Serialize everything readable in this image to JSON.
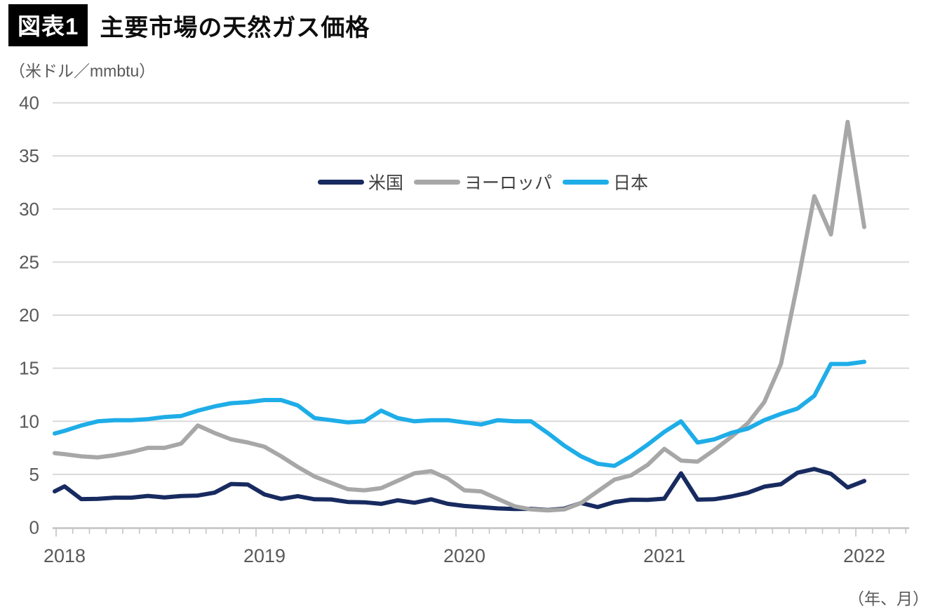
{
  "header": {
    "figure_label": "図表1",
    "title": "主要市場の天然ガス価格"
  },
  "unit_label": "（米ドル／mmbtu）",
  "x_axis_note": "（年、月）",
  "colors": {
    "us": "#182b60",
    "europe": "#a7a7a7",
    "japan": "#1fade8",
    "grid": "#d9d9d9",
    "axis": "#c3c3c3",
    "tick_label": "#595959"
  },
  "chart_data": {
    "type": "line",
    "title": "主要市場の天然ガス価格",
    "ylabel": "米ドル／mmbtu",
    "xlabel": "年、月",
    "ylim": [
      0,
      40
    ],
    "yticks": [
      0,
      5,
      10,
      15,
      20,
      25,
      30,
      35,
      40
    ],
    "grid": "horizontal",
    "legend_position": "top-center-inside",
    "x_year_labels": [
      "2018",
      "2019",
      "2020",
      "2021",
      "2022"
    ],
    "months": [
      "2018-01",
      "2018-02",
      "2018-03",
      "2018-04",
      "2018-05",
      "2018-06",
      "2018-07",
      "2018-08",
      "2018-09",
      "2018-10",
      "2018-11",
      "2018-12",
      "2019-01",
      "2019-02",
      "2019-03",
      "2019-04",
      "2019-05",
      "2019-06",
      "2019-07",
      "2019-08",
      "2019-09",
      "2019-10",
      "2019-11",
      "2019-12",
      "2020-01",
      "2020-02",
      "2020-03",
      "2020-04",
      "2020-05",
      "2020-06",
      "2020-07",
      "2020-08",
      "2020-09",
      "2020-10",
      "2020-11",
      "2020-12",
      "2021-01",
      "2021-02",
      "2021-03",
      "2021-04",
      "2021-05",
      "2021-06",
      "2021-07",
      "2021-08",
      "2021-09",
      "2021-10",
      "2021-11",
      "2021-12",
      "2022-01"
    ],
    "series": [
      {
        "key": "us",
        "name": "米国",
        "color": "#182b60",
        "clipped_lead_in_value": 3.4,
        "values": [
          3.87,
          2.67,
          2.69,
          2.8,
          2.8,
          2.97,
          2.83,
          2.96,
          3.0,
          3.28,
          4.09,
          4.04,
          3.11,
          2.69,
          2.95,
          2.65,
          2.64,
          2.4,
          2.37,
          2.22,
          2.56,
          2.33,
          2.65,
          2.22,
          2.02,
          1.91,
          1.79,
          1.74,
          1.75,
          1.63,
          1.77,
          2.3,
          1.92,
          2.39,
          2.61,
          2.59,
          2.71,
          5.1,
          2.62,
          2.66,
          2.91,
          3.26,
          3.84,
          4.07,
          5.16,
          5.51,
          5.05,
          3.76,
          4.38
        ]
      },
      {
        "key": "europe",
        "name": "ヨーロッパ",
        "color": "#a7a7a7",
        "clipped_lead_in_value": 7.0,
        "values": [
          6.9,
          6.7,
          6.6,
          6.8,
          7.1,
          7.5,
          7.5,
          7.9,
          9.6,
          8.9,
          8.3,
          8.0,
          7.6,
          6.7,
          5.7,
          4.8,
          4.2,
          3.6,
          3.5,
          3.7,
          4.4,
          5.1,
          5.3,
          4.6,
          3.5,
          3.4,
          2.7,
          2.0,
          1.7,
          1.6,
          1.7,
          2.3,
          3.4,
          4.5,
          4.9,
          5.9,
          7.4,
          6.3,
          6.2,
          7.3,
          8.5,
          9.8,
          11.8,
          15.4,
          23.0,
          31.2,
          27.6,
          38.2,
          28.3
        ]
      },
      {
        "key": "japan",
        "name": "日本",
        "color": "#1fade8",
        "clipped_lead_in_value": 8.85,
        "values": [
          9.1,
          9.6,
          10.0,
          10.1,
          10.1,
          10.2,
          10.4,
          10.5,
          11.0,
          11.4,
          11.7,
          11.8,
          12.0,
          12.0,
          11.5,
          10.3,
          10.1,
          9.9,
          10.0,
          11.0,
          10.3,
          10.0,
          10.1,
          10.1,
          9.9,
          9.7,
          10.1,
          10.0,
          10.0,
          8.9,
          7.7,
          6.7,
          6.0,
          5.8,
          6.7,
          7.8,
          9.0,
          10.0,
          8.0,
          8.3,
          8.9,
          9.3,
          10.1,
          10.7,
          11.2,
          12.4,
          15.4,
          15.4,
          15.6
        ]
      }
    ]
  }
}
